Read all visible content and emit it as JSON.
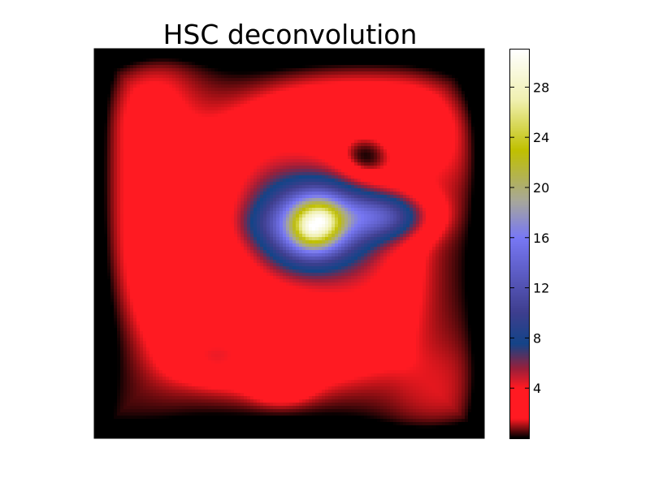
{
  "chart_data": {
    "type": "heatmap",
    "title": "HSC deconvolution",
    "xlabel": "",
    "ylabel": "",
    "colormap": "gist_stern",
    "colorbar": {
      "range": [
        0,
        31
      ],
      "ticks": [
        4,
        8,
        12,
        16,
        20,
        24,
        28
      ],
      "tick_labels": [
        "4",
        "8",
        "12",
        "16",
        "20",
        "24",
        "28"
      ],
      "stops": [
        {
          "value": 0,
          "color": "#000000"
        },
        {
          "value": 1.5,
          "color": "#ff1a22"
        },
        {
          "value": 4,
          "color": "#ff1a22"
        },
        {
          "value": 5.5,
          "color": "#9a1f3a"
        },
        {
          "value": 7.5,
          "color": "#134488"
        },
        {
          "value": 10,
          "color": "#3e3e8e"
        },
        {
          "value": 16,
          "color": "#7878f5"
        },
        {
          "value": 19,
          "color": "#a8a898"
        },
        {
          "value": 23,
          "color": "#c0c000"
        },
        {
          "value": 27,
          "color": "#f0f0b0"
        },
        {
          "value": 31,
          "color": "#ffffff"
        }
      ]
    },
    "features": {
      "background_level": 2.5,
      "peak": {
        "x": 0.57,
        "y": 0.55,
        "value": 31
      },
      "halo": {
        "x": 0.57,
        "y": 0.55,
        "value": 17
      },
      "tail": {
        "x": 0.75,
        "y": 0.58,
        "value": 11
      },
      "dark_lane": {
        "x": 0.69,
        "y": 0.72,
        "value": -2.5
      },
      "faint_blobs": [
        {
          "x": 0.48,
          "y": 0.13,
          "value": 4
        },
        {
          "x": 0.31,
          "y": 0.2,
          "value": 4
        },
        {
          "x": 0.43,
          "y": 0.55,
          "value": 3.5
        }
      ]
    }
  }
}
